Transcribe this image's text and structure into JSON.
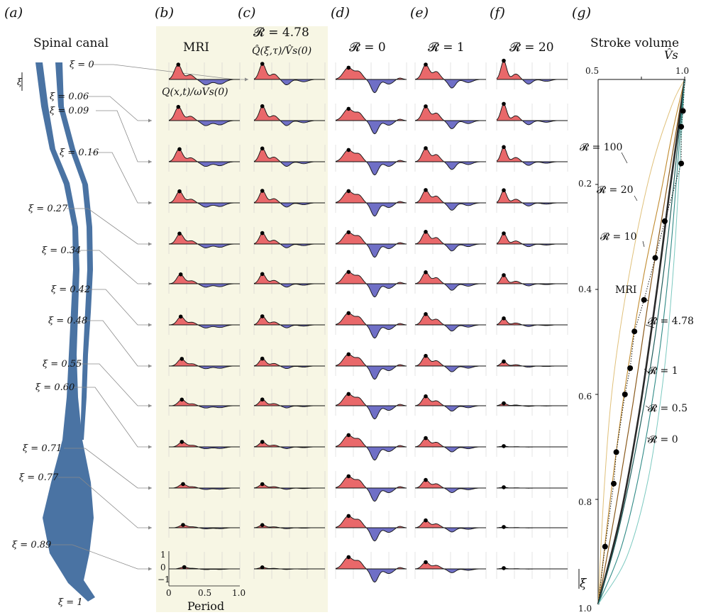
{
  "figure": {
    "panel_letters": [
      "(a)",
      "(b)",
      "(c)",
      "(d)",
      "(e)",
      "(f)",
      "(g)"
    ],
    "panel_a_title": "Spinal canal",
    "xi_labels": [
      "ξ = 0",
      "ξ = 0.06",
      "ξ = 0.09",
      "ξ = 0.16",
      "ξ = 0.27",
      "ξ = 0.34",
      "ξ = 0.42",
      "ξ = 0.48",
      "ξ = 0.55",
      "ξ = 0.60",
      "ξ = 0.71",
      "ξ = 0.77",
      "ξ = 0.89",
      "ξ = 1"
    ],
    "xi_axis_symbol": "ξ",
    "panel_b_title": "MRI",
    "panel_b_ylabel": "Q(x,t)/ωVs(0)",
    "panel_b_xlabel": "Period",
    "panel_b_xticks": [
      "0",
      "0.5",
      "1.0"
    ],
    "panel_b_yticks": [
      "1",
      "0",
      "−1"
    ],
    "panel_c_title": "𝓡 = 4.78",
    "panel_c_ylabel": "Q̂(ξ,τ)/V̂s(0)",
    "panel_d_title": "𝓡 = 0",
    "panel_e_title": "𝓡 = 1",
    "panel_f_title": "𝓡 = 20",
    "colors": {
      "mri_background": "#f7f6e4",
      "positive_fill": "#e9686a",
      "negative_fill": "#6f6fc6",
      "spine": "#4a73a3",
      "grid": "#c8c8c8"
    }
  },
  "chart_data": {
    "type": "line",
    "title": "Stroke volume",
    "xlabel": "V̂s",
    "ylabel": "ξ",
    "xlim": [
      0,
      1
    ],
    "ylim": [
      1.0,
      0
    ],
    "xticks": [
      "0.5",
      "1.0"
    ],
    "yticks": [
      "0.2",
      "0.4",
      "0.6",
      "0.8",
      "1.0"
    ],
    "series": [
      {
        "name": "𝓡 = 100",
        "color": "#e0c07a",
        "width": 1.0,
        "points": [
          [
            1.0,
            0
          ],
          [
            0.85,
            0.05
          ],
          [
            0.6,
            0.18
          ],
          [
            0.35,
            0.38
          ],
          [
            0.17,
            0.58
          ],
          [
            0.07,
            0.78
          ],
          [
            0,
            1.0
          ]
        ]
      },
      {
        "name": "𝓡 = 20",
        "color": "#c08a2e",
        "width": 1.1,
        "points": [
          [
            1.0,
            0
          ],
          [
            0.86,
            0.1
          ],
          [
            0.72,
            0.22
          ],
          [
            0.52,
            0.38
          ],
          [
            0.3,
            0.6
          ],
          [
            0.14,
            0.8
          ],
          [
            0,
            1.0
          ]
        ]
      },
      {
        "name": "𝓡 = 10",
        "color": "#8a5a1c",
        "width": 1.2,
        "points": [
          [
            1.0,
            0
          ],
          [
            0.86,
            0.14
          ],
          [
            0.74,
            0.26
          ],
          [
            0.6,
            0.4
          ],
          [
            0.4,
            0.62
          ],
          [
            0.2,
            0.82
          ],
          [
            0,
            1.0
          ]
        ]
      },
      {
        "name": "𝓡 = 4.78",
        "color": "#2a2a2a",
        "width": 2.6,
        "points": [
          [
            1.0,
            0
          ],
          [
            0.92,
            0.1
          ],
          [
            0.82,
            0.22
          ],
          [
            0.68,
            0.4
          ],
          [
            0.48,
            0.63
          ],
          [
            0.26,
            0.83
          ],
          [
            0,
            1.0
          ]
        ]
      },
      {
        "name": "𝓡 = 1",
        "color": "#1f5e5c",
        "width": 1.2,
        "points": [
          [
            1.0,
            0
          ],
          [
            0.91,
            0.14
          ],
          [
            0.8,
            0.31
          ],
          [
            0.64,
            0.51
          ],
          [
            0.44,
            0.7
          ],
          [
            0.22,
            0.87
          ],
          [
            0,
            1.0
          ]
        ]
      },
      {
        "name": "𝓡 = 0.5",
        "color": "#2f8a86",
        "width": 1.1,
        "points": [
          [
            1.0,
            0
          ],
          [
            0.92,
            0.16
          ],
          [
            0.83,
            0.34
          ],
          [
            0.7,
            0.53
          ],
          [
            0.5,
            0.73
          ],
          [
            0.27,
            0.89
          ],
          [
            0,
            1.0
          ]
        ]
      },
      {
        "name": "𝓡 = 0",
        "color": "#7cc9c0",
        "width": 1.0,
        "points": [
          [
            1.0,
            0
          ],
          [
            0.94,
            0.17
          ],
          [
            0.87,
            0.36
          ],
          [
            0.76,
            0.56
          ],
          [
            0.58,
            0.76
          ],
          [
            0.33,
            0.91
          ],
          [
            0,
            1.0
          ]
        ]
      }
    ],
    "mri_label": "MRI",
    "mri_points": [
      [
        0.98,
        0.06
      ],
      [
        0.96,
        0.09
      ],
      [
        0.96,
        0.16
      ],
      [
        0.77,
        0.27
      ],
      [
        0.66,
        0.34
      ],
      [
        0.53,
        0.42
      ],
      [
        0.42,
        0.48
      ],
      [
        0.37,
        0.55
      ],
      [
        0.31,
        0.6
      ],
      [
        0.21,
        0.71
      ],
      [
        0.18,
        0.77
      ],
      [
        0.08,
        0.89
      ]
    ],
    "annotation_labels": [
      "𝓡 = 100",
      "𝓡 = 20",
      "𝓡 = 10",
      "MRI",
      "𝓡 = 4.78",
      "𝓡 = 1",
      "𝓡 = 0.5",
      "𝓡 = 0"
    ]
  }
}
